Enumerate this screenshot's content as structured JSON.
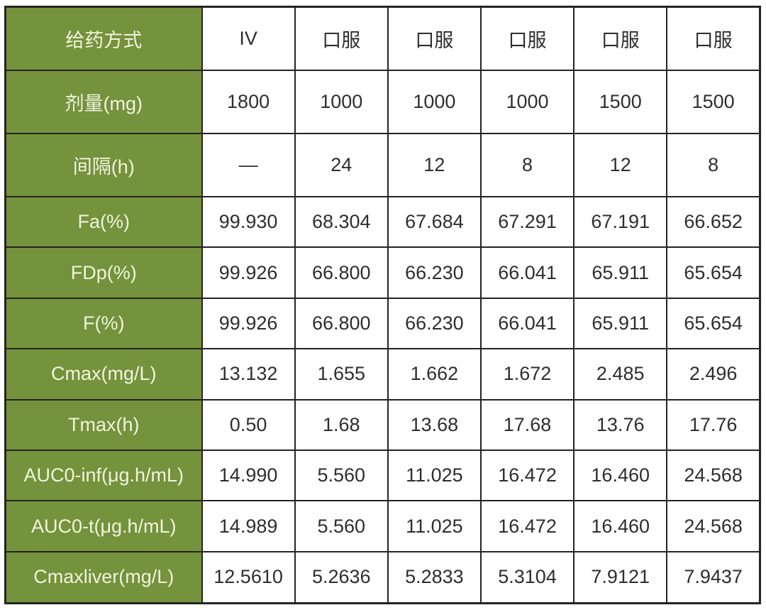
{
  "colors": {
    "header_bg": "#75923c",
    "header_text": "#eff5dd",
    "cell_text": "#2e2e2e",
    "grid_line": "#242424",
    "page_bg": "#ffffff"
  },
  "chart_data": {
    "type": "table",
    "title": "",
    "header_column_label": "给药方式",
    "column_headers": [
      "IV",
      "口服",
      "口服",
      "口服",
      "口服",
      "口服"
    ],
    "rows": [
      {
        "label": "给药方式",
        "values": [
          "IV",
          "口服",
          "口服",
          "口服",
          "口服",
          "口服"
        ]
      },
      {
        "label": "剂量(mg)",
        "values": [
          "1800",
          "1000",
          "1000",
          "1000",
          "1500",
          "1500"
        ]
      },
      {
        "label": "间隔(h)",
        "values": [
          "—",
          "24",
          "12",
          "8",
          "12",
          "8"
        ]
      },
      {
        "label": "Fa(%)",
        "values": [
          "99.930",
          "68.304",
          "67.684",
          "67.291",
          "67.191",
          "66.652"
        ]
      },
      {
        "label": "FDp(%)",
        "values": [
          "99.926",
          "66.800",
          "66.230",
          "66.041",
          "65.911",
          "65.654"
        ]
      },
      {
        "label": "F(%)",
        "values": [
          "99.926",
          "66.800",
          "66.230",
          "66.041",
          "65.911",
          "65.654"
        ]
      },
      {
        "label": "Cmax(mg/L)",
        "values": [
          "13.132",
          "1.655",
          "1.662",
          "1.672",
          "2.485",
          "2.496"
        ]
      },
      {
        "label": "Tmax(h)",
        "values": [
          "0.50",
          "1.68",
          "13.68",
          "17.68",
          "13.76",
          "17.76"
        ]
      },
      {
        "label": "AUC0-inf(μg.h/mL)",
        "values": [
          "14.990",
          "5.560",
          "11.025",
          "16.472",
          "16.460",
          "24.568"
        ]
      },
      {
        "label": "AUC0-t(μg.h/mL)",
        "values": [
          "14.989",
          "5.560",
          "11.025",
          "16.472",
          "16.460",
          "24.568"
        ]
      },
      {
        "label": "Cmaxliver(mg/L)",
        "values": [
          "12.5610",
          "5.2636",
          "5.2833",
          "5.3104",
          "7.9121",
          "7.9437"
        ]
      }
    ]
  }
}
